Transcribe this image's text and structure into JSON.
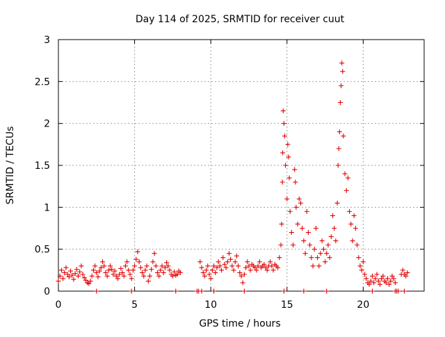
{
  "chart_data": {
    "type": "scatter",
    "title": "Day 114 of 2025, SRMTID for receiver cuut",
    "xlabel": "GPS time / hours",
    "ylabel": "SRMTID / TECUs",
    "xlim": [
      0,
      24
    ],
    "ylim": [
      0,
      3
    ],
    "x_ticks": [
      0,
      5,
      10,
      15,
      20
    ],
    "x_tick_labels": [
      "0",
      "5",
      "10",
      "15",
      "20"
    ],
    "y_ticks": [
      0,
      0.5,
      1,
      1.5,
      2,
      2.5,
      3
    ],
    "y_tick_labels": [
      "0",
      "0.5",
      "1",
      "1.5",
      "2",
      "2.5",
      "3"
    ],
    "grid": true,
    "marker": "+",
    "series": [
      {
        "name": "SRMTID",
        "color": "#e00000",
        "points": [
          [
            0.0,
            0.12
          ],
          [
            0.1,
            0.18
          ],
          [
            0.2,
            0.25
          ],
          [
            0.3,
            0.15
          ],
          [
            0.4,
            0.22
          ],
          [
            0.5,
            0.28
          ],
          [
            0.6,
            0.2
          ],
          [
            0.7,
            0.17
          ],
          [
            0.8,
            0.24
          ],
          [
            0.9,
            0.19
          ],
          [
            1.0,
            0.14
          ],
          [
            1.1,
            0.21
          ],
          [
            1.2,
            0.26
          ],
          [
            1.3,
            0.18
          ],
          [
            1.4,
            0.23
          ],
          [
            1.5,
            0.3
          ],
          [
            1.6,
            0.2
          ],
          [
            1.7,
            0.16
          ],
          [
            1.8,
            0.13
          ],
          [
            1.9,
            0.1
          ],
          [
            2.0,
            0.09
          ],
          [
            2.1,
            0.12
          ],
          [
            2.2,
            0.18
          ],
          [
            2.3,
            0.25
          ],
          [
            2.4,
            0.3
          ],
          [
            2.5,
            0.22
          ],
          [
            2.6,
            0.17
          ],
          [
            2.7,
            0.24
          ],
          [
            2.8,
            0.28
          ],
          [
            2.9,
            0.35
          ],
          [
            3.0,
            0.3
          ],
          [
            3.1,
            0.22
          ],
          [
            3.2,
            0.18
          ],
          [
            3.3,
            0.25
          ],
          [
            3.4,
            0.3
          ],
          [
            3.5,
            0.26
          ],
          [
            3.6,
            0.2
          ],
          [
            3.7,
            0.24
          ],
          [
            3.8,
            0.18
          ],
          [
            3.9,
            0.15
          ],
          [
            4.0,
            0.2
          ],
          [
            4.1,
            0.27
          ],
          [
            4.2,
            0.22
          ],
          [
            4.3,
            0.18
          ],
          [
            4.4,
            0.3
          ],
          [
            4.5,
            0.35
          ],
          [
            4.6,
            0.25
          ],
          [
            4.7,
            0.2
          ],
          [
            4.8,
            0.15
          ],
          [
            4.9,
            0.25
          ],
          [
            5.0,
            0.3
          ],
          [
            5.1,
            0.38
          ],
          [
            5.2,
            0.47
          ],
          [
            5.3,
            0.35
          ],
          [
            5.4,
            0.28
          ],
          [
            5.5,
            0.22
          ],
          [
            5.6,
            0.18
          ],
          [
            5.7,
            0.25
          ],
          [
            5.8,
            0.3
          ],
          [
            5.9,
            0.12
          ],
          [
            6.0,
            0.18
          ],
          [
            6.1,
            0.26
          ],
          [
            6.2,
            0.35
          ],
          [
            6.3,
            0.45
          ],
          [
            6.4,
            0.3
          ],
          [
            6.5,
            0.22
          ],
          [
            6.6,
            0.18
          ],
          [
            6.7,
            0.25
          ],
          [
            6.8,
            0.3
          ],
          [
            6.9,
            0.22
          ],
          [
            7.0,
            0.28
          ],
          [
            7.1,
            0.34
          ],
          [
            7.2,
            0.3
          ],
          [
            7.3,
            0.25
          ],
          [
            7.4,
            0.2
          ],
          [
            7.5,
            0.18
          ],
          [
            7.6,
            0.23
          ],
          [
            7.7,
            0.19
          ],
          [
            7.8,
            0.2
          ],
          [
            7.9,
            0.24
          ],
          [
            8.0,
            0.22
          ],
          [
            9.3,
            0.35
          ],
          [
            9.4,
            0.28
          ],
          [
            9.5,
            0.22
          ],
          [
            9.6,
            0.18
          ],
          [
            9.7,
            0.25
          ],
          [
            9.8,
            0.3
          ],
          [
            9.9,
            0.2
          ],
          [
            10.0,
            0.15
          ],
          [
            10.1,
            0.25
          ],
          [
            10.2,
            0.3
          ],
          [
            10.3,
            0.22
          ],
          [
            10.4,
            0.28
          ],
          [
            10.5,
            0.35
          ],
          [
            10.6,
            0.3
          ],
          [
            10.7,
            0.25
          ],
          [
            10.8,
            0.4
          ],
          [
            10.9,
            0.32
          ],
          [
            11.0,
            0.28
          ],
          [
            11.1,
            0.35
          ],
          [
            11.2,
            0.45
          ],
          [
            11.3,
            0.38
          ],
          [
            11.4,
            0.3
          ],
          [
            11.5,
            0.25
          ],
          [
            11.6,
            0.35
          ],
          [
            11.7,
            0.42
          ],
          [
            11.8,
            0.3
          ],
          [
            11.9,
            0.22
          ],
          [
            12.0,
            0.18
          ],
          [
            12.1,
            0.1
          ],
          [
            12.2,
            0.2
          ],
          [
            12.3,
            0.28
          ],
          [
            12.4,
            0.35
          ],
          [
            12.5,
            0.3
          ],
          [
            12.6,
            0.25
          ],
          [
            12.7,
            0.32
          ],
          [
            12.8,
            0.3
          ],
          [
            12.9,
            0.28
          ],
          [
            13.0,
            0.25
          ],
          [
            13.1,
            0.3
          ],
          [
            13.2,
            0.35
          ],
          [
            13.3,
            0.28
          ],
          [
            13.4,
            0.3
          ],
          [
            13.5,
            0.32
          ],
          [
            13.6,
            0.28
          ],
          [
            13.7,
            0.25
          ],
          [
            13.8,
            0.3
          ],
          [
            13.9,
            0.35
          ],
          [
            14.0,
            0.3
          ],
          [
            14.1,
            0.25
          ],
          [
            14.2,
            0.32
          ],
          [
            14.3,
            0.3
          ],
          [
            14.4,
            0.28
          ],
          [
            14.5,
            0.4
          ],
          [
            14.6,
            0.55
          ],
          [
            14.65,
            0.8
          ],
          [
            14.7,
            1.3
          ],
          [
            14.72,
            1.65
          ],
          [
            14.75,
            2.15
          ],
          [
            14.8,
            2.0
          ],
          [
            14.85,
            1.85
          ],
          [
            14.9,
            1.5
          ],
          [
            15.0,
            1.1
          ],
          [
            15.05,
            1.75
          ],
          [
            15.1,
            1.6
          ],
          [
            15.15,
            1.35
          ],
          [
            15.2,
            0.95
          ],
          [
            15.3,
            0.7
          ],
          [
            15.4,
            0.55
          ],
          [
            15.5,
            1.45
          ],
          [
            15.55,
            1.3
          ],
          [
            15.6,
            1.0
          ],
          [
            15.7,
            0.8
          ],
          [
            15.8,
            1.1
          ],
          [
            15.9,
            1.05
          ],
          [
            16.0,
            0.75
          ],
          [
            16.1,
            0.6
          ],
          [
            16.2,
            0.45
          ],
          [
            16.3,
            0.95
          ],
          [
            16.4,
            0.7
          ],
          [
            16.5,
            0.55
          ],
          [
            16.6,
            0.4
          ],
          [
            16.7,
            0.3
          ],
          [
            16.8,
            0.5
          ],
          [
            16.9,
            0.75
          ],
          [
            17.0,
            0.4
          ],
          [
            17.1,
            0.3
          ],
          [
            17.2,
            0.45
          ],
          [
            17.3,
            0.6
          ],
          [
            17.4,
            0.5
          ],
          [
            17.5,
            0.35
          ],
          [
            17.6,
            0.45
          ],
          [
            17.7,
            0.55
          ],
          [
            17.8,
            0.4
          ],
          [
            17.9,
            0.65
          ],
          [
            18.0,
            0.9
          ],
          [
            18.1,
            0.75
          ],
          [
            18.2,
            0.6
          ],
          [
            18.3,
            1.05
          ],
          [
            18.35,
            1.5
          ],
          [
            18.4,
            1.7
          ],
          [
            18.45,
            1.9
          ],
          [
            18.5,
            2.25
          ],
          [
            18.55,
            2.45
          ],
          [
            18.6,
            2.72
          ],
          [
            18.65,
            2.62
          ],
          [
            18.7,
            1.85
          ],
          [
            18.8,
            1.4
          ],
          [
            18.9,
            1.2
          ],
          [
            19.0,
            1.35
          ],
          [
            19.1,
            0.95
          ],
          [
            19.2,
            0.8
          ],
          [
            19.3,
            0.6
          ],
          [
            19.4,
            0.9
          ],
          [
            19.5,
            0.75
          ],
          [
            19.6,
            0.55
          ],
          [
            19.7,
            0.4
          ],
          [
            19.8,
            0.3
          ],
          [
            19.9,
            0.25
          ],
          [
            20.0,
            0.35
          ],
          [
            20.1,
            0.2
          ],
          [
            20.2,
            0.15
          ],
          [
            20.3,
            0.1
          ],
          [
            20.4,
            0.08
          ],
          [
            20.5,
            0.12
          ],
          [
            20.6,
            0.18
          ],
          [
            20.7,
            0.1
          ],
          [
            20.8,
            0.15
          ],
          [
            20.9,
            0.2
          ],
          [
            21.0,
            0.12
          ],
          [
            21.1,
            0.08
          ],
          [
            21.2,
            0.15
          ],
          [
            21.3,
            0.18
          ],
          [
            21.4,
            0.12
          ],
          [
            21.5,
            0.1
          ],
          [
            21.6,
            0.15
          ],
          [
            21.7,
            0.08
          ],
          [
            21.8,
            0.12
          ],
          [
            21.9,
            0.18
          ],
          [
            22.0,
            0.15
          ],
          [
            22.1,
            0.1
          ],
          [
            22.5,
            0.2
          ],
          [
            22.6,
            0.25
          ],
          [
            22.7,
            0.2
          ],
          [
            22.8,
            0.18
          ],
          [
            22.9,
            0.22
          ],
          [
            2.5,
            0.0
          ],
          [
            4.8,
            0.0
          ],
          [
            7.7,
            0.0
          ],
          [
            9.1,
            0.0
          ],
          [
            9.2,
            0.0
          ],
          [
            9.4,
            0.0
          ],
          [
            10.2,
            0.0
          ],
          [
            12.2,
            0.0
          ],
          [
            14.8,
            0.0
          ],
          [
            16.1,
            0.0
          ],
          [
            17.6,
            0.0
          ],
          [
            20.6,
            0.0
          ],
          [
            22.1,
            0.0
          ],
          [
            22.2,
            0.0
          ],
          [
            22.3,
            0.0
          ],
          [
            22.7,
            0.0
          ]
        ]
      }
    ]
  }
}
